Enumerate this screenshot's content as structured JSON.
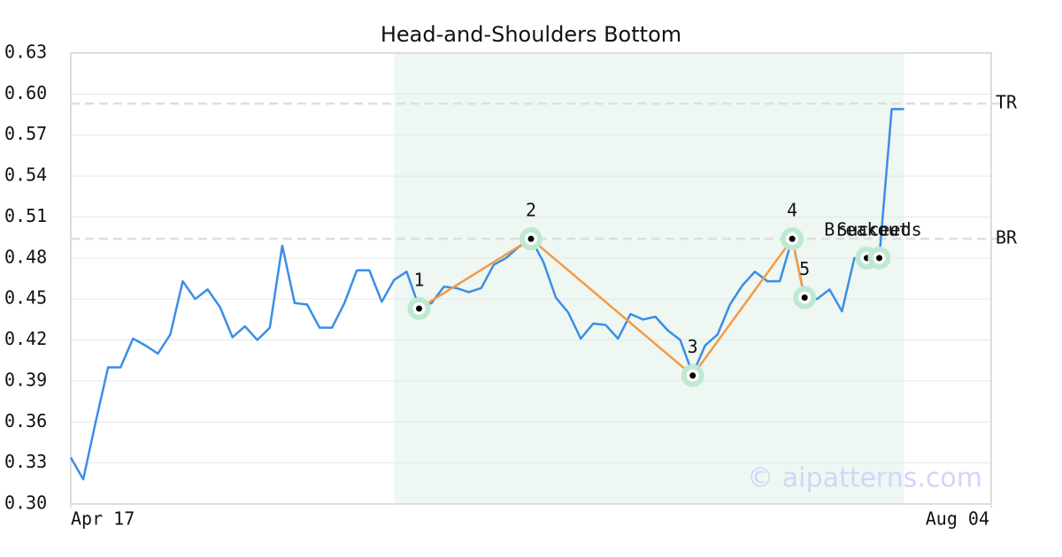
{
  "chart_data": {
    "type": "line",
    "title": "Head-and-Shoulders Bottom",
    "watermark": "© aipatterns.com",
    "x": [
      0,
      1,
      2,
      3,
      4,
      5,
      6,
      7,
      8,
      9,
      10,
      11,
      12,
      13,
      14,
      15,
      16,
      17,
      18,
      19,
      20,
      21,
      22,
      23,
      24,
      25,
      26,
      27,
      28,
      29,
      30,
      31,
      32,
      33,
      34,
      35,
      36,
      37,
      38,
      39,
      40,
      41,
      42,
      43,
      44,
      45,
      46,
      47,
      48,
      49,
      50,
      51,
      52,
      53,
      54,
      55,
      56,
      57,
      58,
      59,
      60,
      61,
      62,
      63,
      64,
      65,
      66,
      67
    ],
    "series": [
      {
        "color": "#3a8ee6",
        "values": [
          0.334,
          0.318,
          0.36,
          0.4,
          0.4,
          0.421,
          0.416,
          0.41,
          0.424,
          0.463,
          0.45,
          0.457,
          0.444,
          0.422,
          0.43,
          0.42,
          0.429,
          0.489,
          0.447,
          0.446,
          0.429,
          0.429,
          0.447,
          0.471,
          0.471,
          0.448,
          0.464,
          0.47,
          0.444,
          0.447,
          0.459,
          0.458,
          0.455,
          0.458,
          0.475,
          0.48,
          0.488,
          0.494,
          0.477,
          0.451,
          0.44,
          0.421,
          0.432,
          0.431,
          0.421,
          0.439,
          0.435,
          0.437,
          0.427,
          0.42,
          0.395,
          0.416,
          0.424,
          0.446,
          0.46,
          0.47,
          0.463,
          0.463,
          0.494,
          0.451,
          0.45,
          0.457,
          0.441,
          0.48,
          0.48,
          0.48,
          0.589,
          0.589
        ]
      }
    ],
    "xlim": [
      0,
      74
    ],
    "xticks": [
      {
        "value": 0,
        "label": "Apr 17"
      },
      {
        "value": 74,
        "label": "Aug 04"
      }
    ],
    "ylim": [
      0.3,
      0.63
    ],
    "yticks": [
      {
        "value": 0.3,
        "label": "0.30"
      },
      0.33,
      0.36,
      0.39,
      0.42,
      0.45,
      0.48,
      0.51,
      0.54,
      0.57,
      {
        "value": 0.6,
        "label": "0.60"
      },
      0.63
    ],
    "grid": true,
    "highlight_range": [
      26,
      67
    ],
    "levels": [
      {
        "label": "TR",
        "value": 0.593
      },
      {
        "label": "BR",
        "value": 0.494
      }
    ],
    "pattern": {
      "color": "#f59a45",
      "points": [
        {
          "label": "1",
          "x": 28,
          "y": 0.443
        },
        {
          "label": "2",
          "x": 37,
          "y": 0.494
        },
        {
          "label": "3",
          "x": 50,
          "y": 0.394
        },
        {
          "label": "4",
          "x": 58,
          "y": 0.494
        },
        {
          "label": "5",
          "x": 59,
          "y": 0.451
        }
      ]
    },
    "signals": [
      {
        "label": "Breakout",
        "x": 64,
        "y": 0.48
      },
      {
        "label": "Succeeds",
        "x": 65,
        "y": 0.48
      }
    ]
  }
}
